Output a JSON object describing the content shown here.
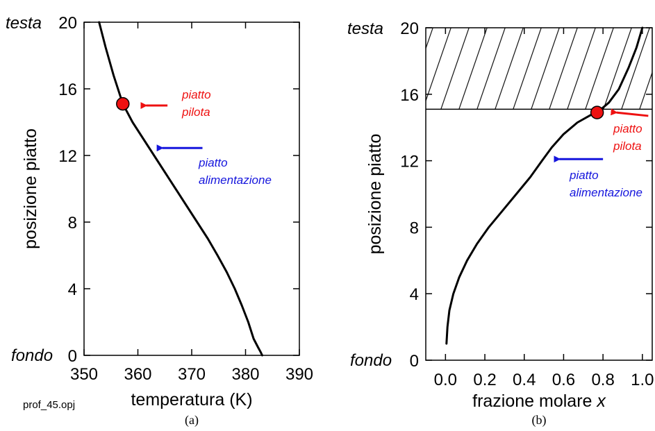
{
  "chart_data": [
    {
      "id": "a",
      "type": "line",
      "xlabel": "temperatura (K)",
      "ylabel": "posizione piatto",
      "xlim": [
        350,
        390
      ],
      "ylim": [
        0,
        20
      ],
      "xticks": [
        "350",
        "360",
        "370",
        "380",
        "390"
      ],
      "yticks": [
        "0",
        "4",
        "8",
        "12",
        "16",
        "20"
      ],
      "top_label": "testa",
      "bottom_label": "fondo",
      "caption": "(a)",
      "footnote": "prof_45.opj",
      "series": [
        {
          "x": [
            352.8,
            354.0,
            355.5,
            357.2,
            359.0,
            361.0,
            363.0,
            365.0,
            367.0,
            369.0,
            371.0,
            373.0,
            374.8,
            376.5,
            378.0,
            379.3,
            380.5,
            381.5,
            382.3,
            382.8,
            383.1
          ],
          "y": [
            20,
            18.5,
            16.8,
            15.1,
            14.0,
            13.0,
            12.0,
            11.0,
            10.0,
            9.0,
            8.0,
            7.0,
            6.0,
            5.0,
            4.0,
            3.0,
            2.0,
            1.0,
            0.5,
            0.2,
            0.0
          ],
          "color": "#000000"
        }
      ],
      "marker": {
        "x": 357.2,
        "y": 15.1,
        "color": "#ee1111"
      },
      "annotations": [
        {
          "lines": [
            "piatto",
            "pilota"
          ],
          "color": "#ee1111",
          "target": [
            360.5,
            15.0
          ],
          "arrow_from": [
            365.5,
            15.0
          ]
        },
        {
          "lines": [
            "piatto",
            "alimentazione"
          ],
          "color": "#1515dd",
          "target": [
            363.5,
            12.45
          ],
          "arrow_from": [
            372.0,
            12.45
          ]
        }
      ]
    },
    {
      "id": "b",
      "type": "line",
      "xlabel": "frazione molare ",
      "xlabel_var": "x",
      "ylabel": "posizione piatto",
      "xlim": [
        -0.1,
        1.05
      ],
      "ylim": [
        0,
        20
      ],
      "xticks": [
        "0.0",
        "0.2",
        "0.4",
        "0.6",
        "0.8",
        "1.0"
      ],
      "yticks": [
        "0",
        "4",
        "8",
        "12",
        "16",
        "20"
      ],
      "top_label": "testa",
      "bottom_label": "fondo",
      "caption": "(b)",
      "shaded_region": {
        "ymin": 15.1,
        "ymax": 20
      },
      "series": [
        {
          "x": [
            0.005,
            0.01,
            0.02,
            0.04,
            0.07,
            0.11,
            0.16,
            0.22,
            0.29,
            0.36,
            0.43,
            0.49,
            0.54,
            0.6,
            0.67,
            0.73,
            0.78,
            0.83,
            0.88,
            0.93,
            0.97,
            1.0
          ],
          "y": [
            1.0,
            2.0,
            3.0,
            4.0,
            5.0,
            6.0,
            7.0,
            8.0,
            9.0,
            10.0,
            11.0,
            12.0,
            12.8,
            13.6,
            14.3,
            14.7,
            15.0,
            15.5,
            16.3,
            17.6,
            18.8,
            20.0
          ],
          "color": "#000000"
        }
      ],
      "marker": {
        "x": 0.77,
        "y": 14.9,
        "color": "#ee1111"
      },
      "annotations": [
        {
          "lines": [
            "piatto",
            "pilota"
          ],
          "color": "#ee1111",
          "target": [
            0.84,
            14.9
          ],
          "arrow_from": [
            1.03,
            14.7
          ]
        },
        {
          "lines": [
            "piatto",
            "alimentazione"
          ],
          "color": "#1515dd",
          "target": [
            0.55,
            12.1
          ],
          "arrow_from": [
            0.8,
            12.1
          ]
        }
      ]
    }
  ]
}
